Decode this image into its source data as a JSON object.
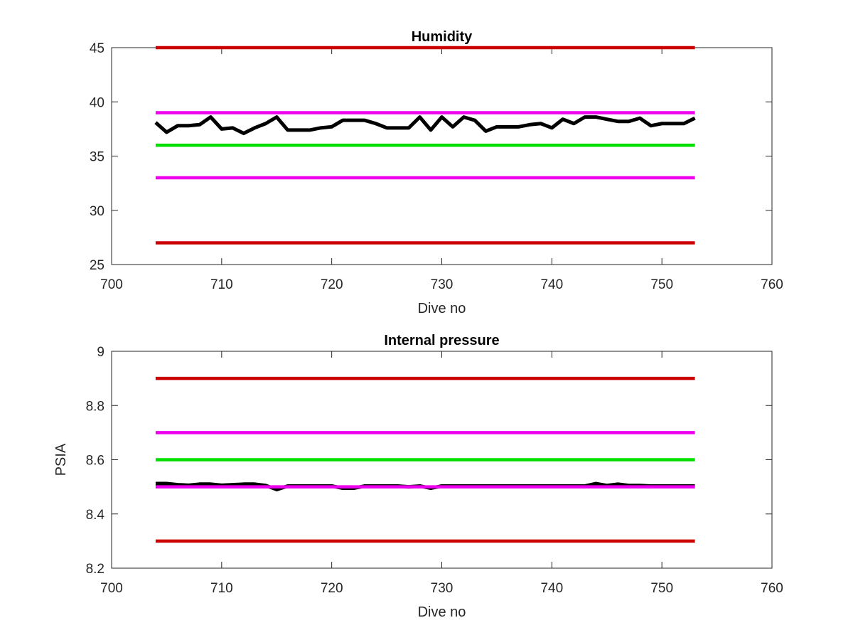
{
  "chart_data": [
    {
      "type": "line",
      "title": "Humidity",
      "xlabel": "Dive no",
      "ylabel": "",
      "xlim": [
        700,
        760
      ],
      "ylim": [
        25,
        45
      ],
      "xticks": [
        700,
        710,
        720,
        730,
        740,
        750,
        760
      ],
      "yticks": [
        25,
        30,
        35,
        40,
        45
      ],
      "grid": false,
      "series": [
        {
          "color": "#cc0000",
          "x": [
            704,
            753
          ],
          "y": [
            45,
            45
          ]
        },
        {
          "color": "#cc0000",
          "x": [
            704,
            753
          ],
          "y": [
            27,
            27
          ]
        },
        {
          "color": "#ee00ee",
          "x": [
            704,
            753
          ],
          "y": [
            39,
            39
          ]
        },
        {
          "color": "#ee00ee",
          "x": [
            704,
            753
          ],
          "y": [
            33,
            33
          ]
        },
        {
          "color": "#00dd00",
          "x": [
            704,
            753
          ],
          "y": [
            36,
            36
          ]
        },
        {
          "color": "#000000",
          "x": [
            704,
            705,
            706,
            707,
            708,
            709,
            710,
            711,
            712,
            713,
            714,
            715,
            716,
            717,
            718,
            719,
            720,
            721,
            722,
            723,
            724,
            725,
            726,
            727,
            728,
            729,
            730,
            731,
            732,
            733,
            734,
            735,
            736,
            737,
            738,
            739,
            740,
            741,
            742,
            743,
            744,
            745,
            746,
            747,
            748,
            749,
            750,
            751,
            752,
            753
          ],
          "y": [
            38.1,
            37.2,
            37.8,
            37.8,
            37.9,
            38.6,
            37.5,
            37.6,
            37.1,
            37.6,
            38.0,
            38.6,
            37.4,
            37.4,
            37.4,
            37.6,
            37.7,
            38.3,
            38.3,
            38.3,
            38.0,
            37.6,
            37.6,
            37.6,
            38.6,
            37.4,
            38.6,
            37.7,
            38.6,
            38.3,
            37.3,
            37.7,
            37.7,
            37.7,
            37.9,
            38.0,
            37.6,
            38.4,
            38.0,
            38.6,
            38.6,
            38.4,
            38.2,
            38.2,
            38.5,
            37.8,
            38.0,
            38.0,
            38.0,
            38.5
          ]
        }
      ]
    },
    {
      "type": "line",
      "title": "Internal pressure",
      "xlabel": "Dive no",
      "ylabel": "PSIA",
      "xlim": [
        700,
        760
      ],
      "ylim": [
        8.2,
        9.0
      ],
      "xticks": [
        700,
        710,
        720,
        730,
        740,
        750,
        760
      ],
      "yticks": [
        8.2,
        8.4,
        8.6,
        8.8,
        9
      ],
      "grid": false,
      "series": [
        {
          "color": "#cc0000",
          "x": [
            704,
            753
          ],
          "y": [
            8.9,
            8.9
          ]
        },
        {
          "color": "#cc0000",
          "x": [
            704,
            753
          ],
          "y": [
            8.3,
            8.3
          ]
        },
        {
          "color": "#ee00ee",
          "x": [
            704,
            753
          ],
          "y": [
            8.7,
            8.7
          ]
        },
        {
          "color": "#00dd00",
          "x": [
            704,
            753
          ],
          "y": [
            8.6,
            8.6
          ]
        },
        {
          "color": "#000000",
          "x": [
            704,
            705,
            706,
            707,
            708,
            709,
            710,
            711,
            712,
            713,
            714,
            715,
            716,
            717,
            718,
            719,
            720,
            721,
            722,
            723,
            724,
            725,
            726,
            727,
            728,
            729,
            730,
            731,
            732,
            733,
            734,
            735,
            736,
            737,
            738,
            739,
            740,
            741,
            742,
            743,
            744,
            745,
            746,
            747,
            748,
            749,
            750,
            751,
            752,
            753
          ],
          "y": [
            8.512,
            8.512,
            8.508,
            8.506,
            8.51,
            8.51,
            8.506,
            8.508,
            8.51,
            8.51,
            8.505,
            8.49,
            8.503,
            8.503,
            8.503,
            8.503,
            8.503,
            8.495,
            8.495,
            8.503,
            8.503,
            8.503,
            8.503,
            8.5,
            8.503,
            8.495,
            8.503,
            8.503,
            8.503,
            8.503,
            8.503,
            8.503,
            8.503,
            8.503,
            8.503,
            8.503,
            8.503,
            8.503,
            8.503,
            8.503,
            8.512,
            8.505,
            8.51,
            8.505,
            8.505,
            8.503,
            8.503,
            8.503,
            8.503,
            8.503
          ]
        },
        {
          "color": "#ee00ee",
          "x": [
            704,
            753
          ],
          "y": [
            8.5,
            8.5
          ]
        }
      ]
    }
  ]
}
